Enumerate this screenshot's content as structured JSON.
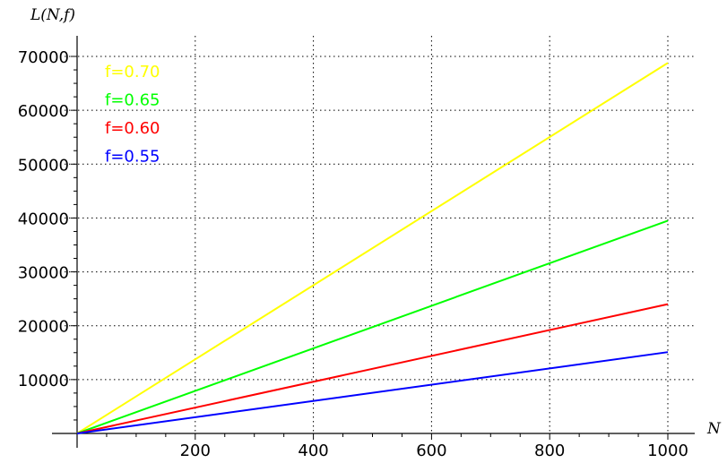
{
  "chart_data": {
    "type": "line",
    "title": "",
    "xlabel": "N",
    "ylabel": "L(N,f)",
    "xlim": [
      0,
      1000
    ],
    "ylim": [
      0,
      70000
    ],
    "x_ticks": [
      200,
      400,
      600,
      800,
      1000
    ],
    "x_tick_labels": [
      "200",
      "400",
      "600",
      "800",
      "1000"
    ],
    "y_ticks": [
      10000,
      20000,
      30000,
      40000,
      50000,
      60000,
      70000
    ],
    "y_tick_labels": [
      "10000",
      "20000",
      "30000",
      "40000",
      "50000",
      "60000",
      "70000"
    ],
    "grid": true,
    "legend": "top-left",
    "series": [
      {
        "name": "f=0.70",
        "color": "#ffff00",
        "x": [
          0,
          1000
        ],
        "y": [
          0,
          68800
        ]
      },
      {
        "name": "f=0.65",
        "color": "#00ff00",
        "x": [
          0,
          1000
        ],
        "y": [
          0,
          39500
        ]
      },
      {
        "name": "f=0.60",
        "color": "#ff0000",
        "x": [
          0,
          1000
        ],
        "y": [
          0,
          24000
        ]
      },
      {
        "name": "f=0.55",
        "color": "#0000ff",
        "x": [
          0,
          1000
        ],
        "y": [
          0,
          15100
        ]
      }
    ]
  }
}
